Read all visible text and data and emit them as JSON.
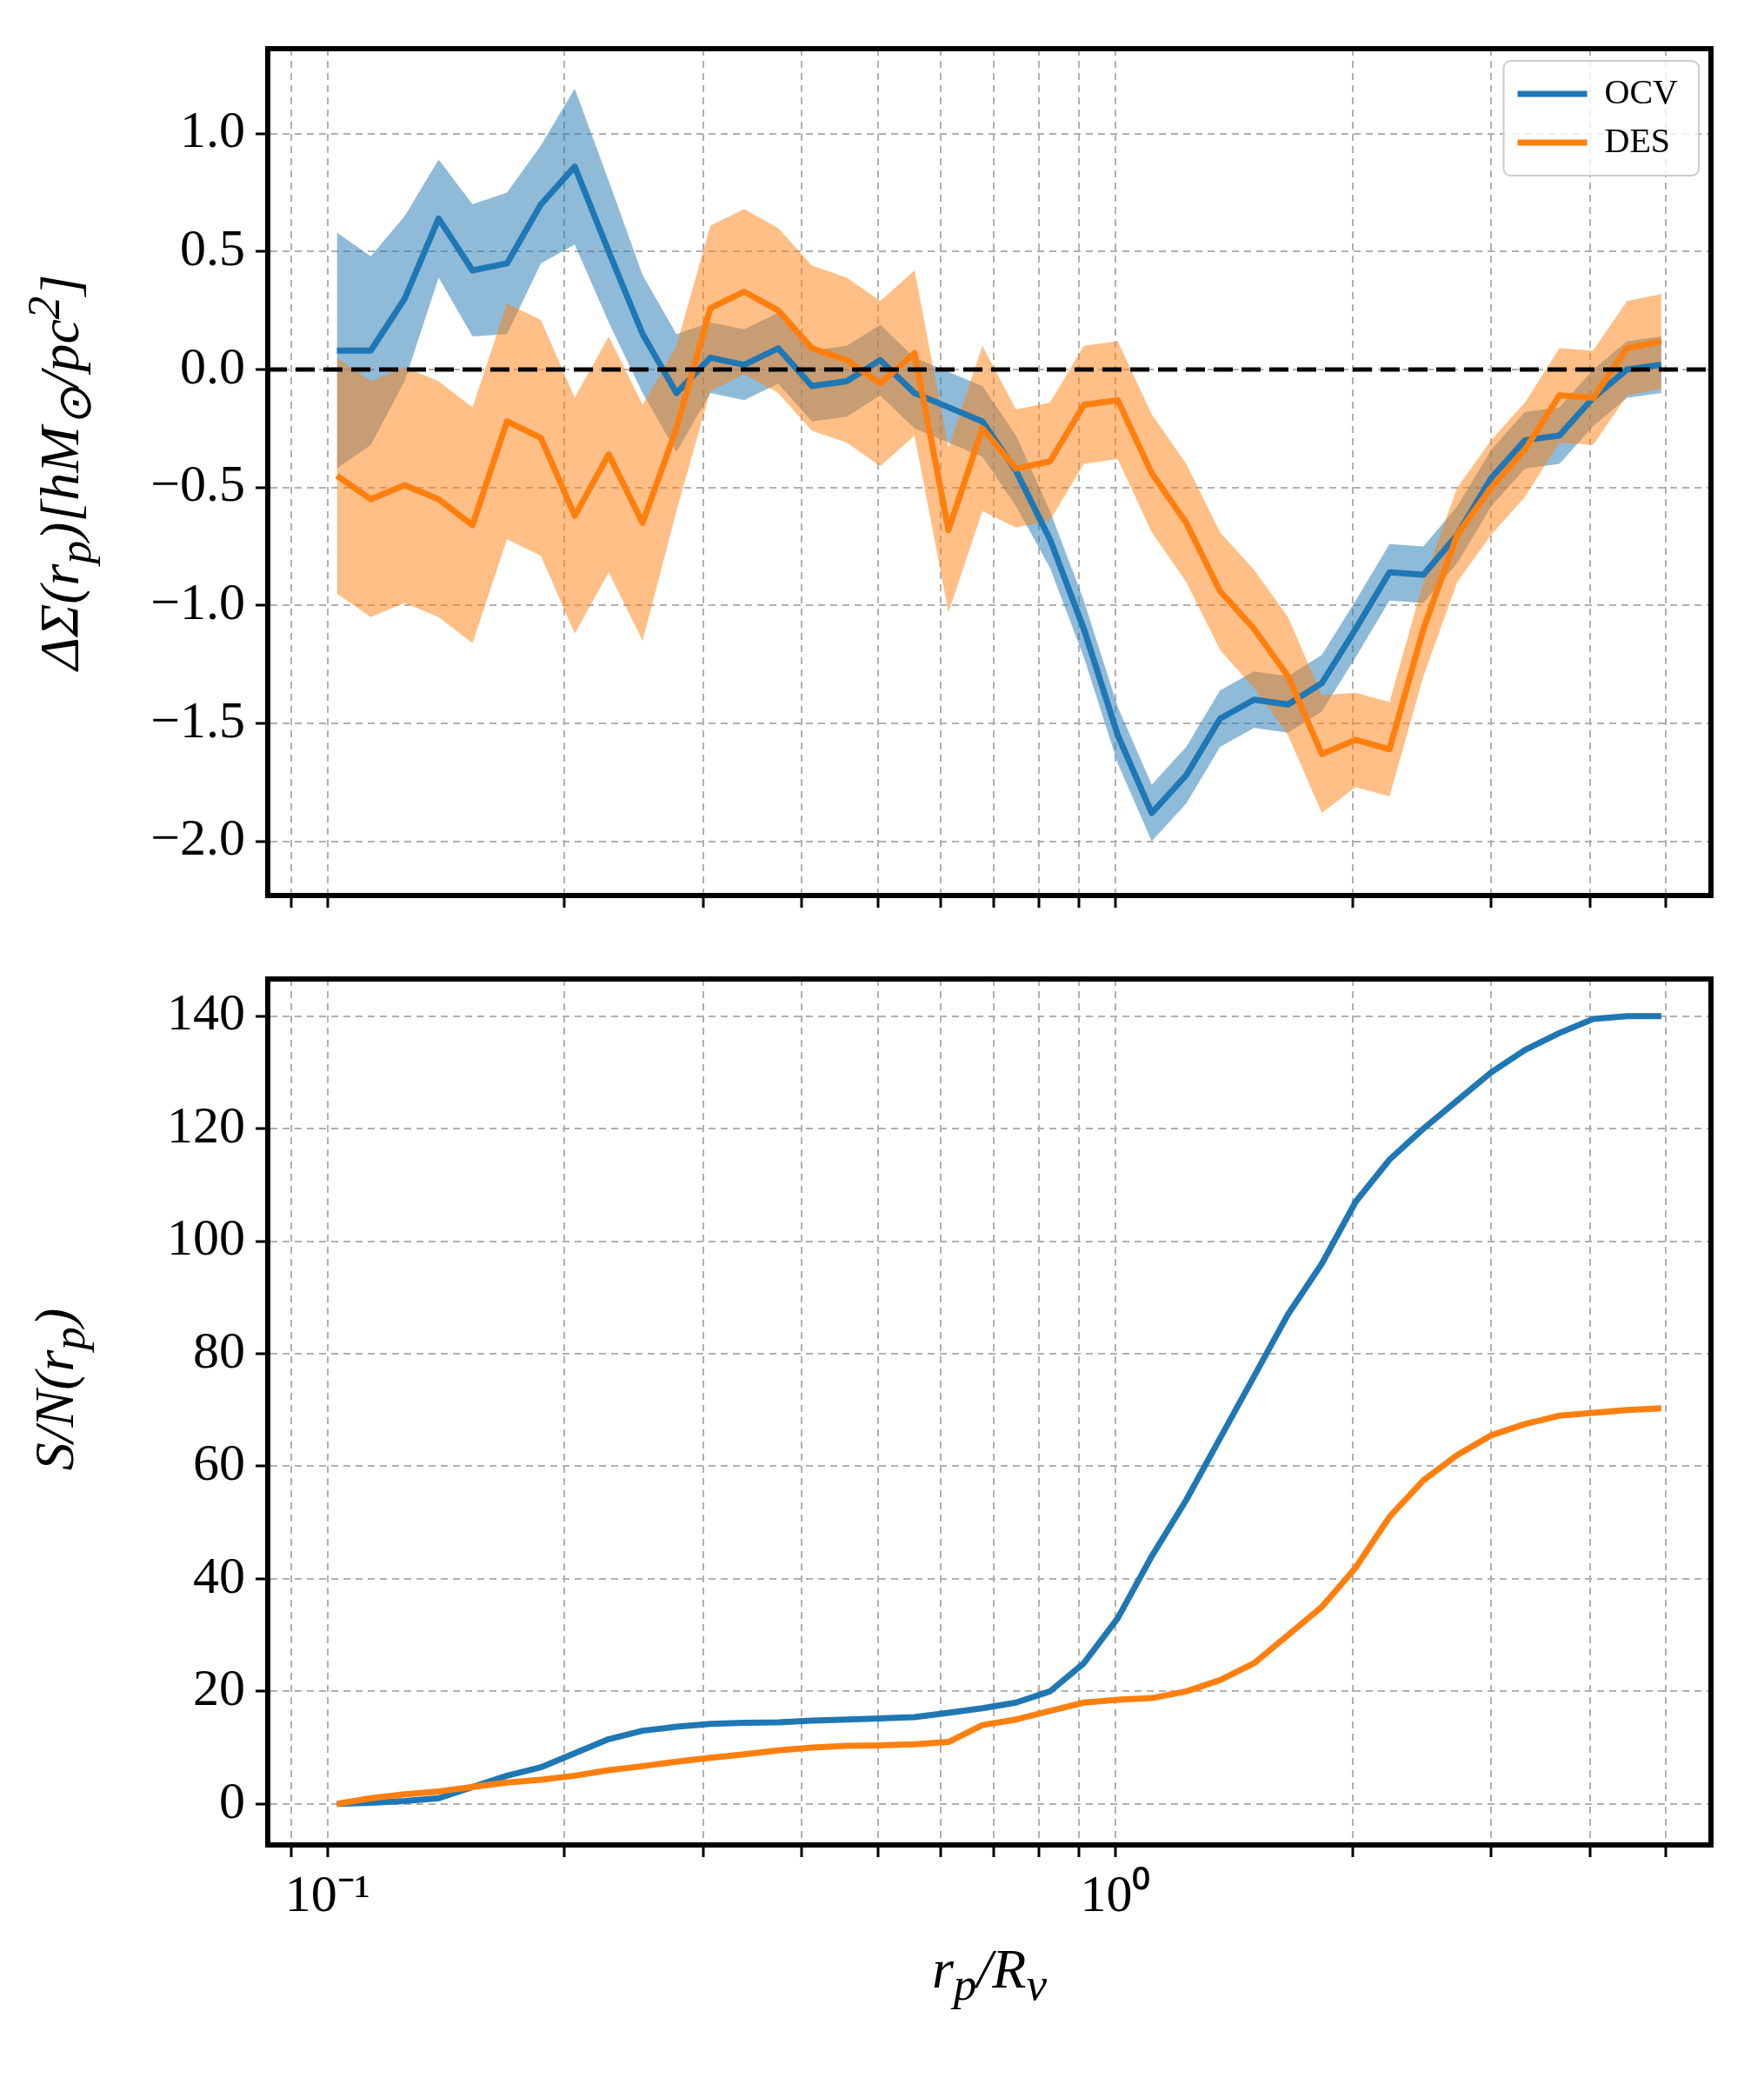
{
  "chart_data": [
    {
      "type": "line",
      "ylabel": "ΔΣ(r$_{p}$)[hM$_{⊙}$/pc$^{2}$]",
      "log": "x",
      "grid": true,
      "legend": "top right",
      "tick_labels": "y",
      "x": [
        0.1028,
        0.1135,
        0.1253,
        0.1384,
        0.1528,
        0.169,
        0.1866,
        0.206,
        0.2275,
        0.2512,
        0.2773,
        0.3062,
        0.338,
        0.3733,
        0.412,
        0.456,
        0.503,
        0.556,
        0.614,
        0.678,
        0.748,
        0.826,
        0.912,
        1.007,
        1.112,
        1.23,
        1.358,
        1.5,
        1.656,
        1.828,
        2.018,
        2.228,
        2.46,
        2.716,
        2.999,
        3.31,
        3.66,
        4.04,
        4.46,
        4.93
      ],
      "xlim": [
        0.084,
        5.7
      ],
      "xticks": [
        {
          "value": 0.09,
          "label": null
        },
        {
          "value": 0.1,
          "label": null
        },
        {
          "value": 0.2,
          "label": null
        },
        {
          "value": 0.3,
          "label": null
        },
        {
          "value": 0.4,
          "label": null
        },
        {
          "value": 0.5,
          "label": null
        },
        {
          "value": 0.6,
          "label": null
        },
        {
          "value": 0.7,
          "label": null
        },
        {
          "value": 0.8,
          "label": null
        },
        {
          "value": 0.9,
          "label": null
        },
        {
          "value": 1,
          "label": null
        },
        {
          "value": 2,
          "label": null
        },
        {
          "value": 3,
          "label": null
        },
        {
          "value": 4,
          "label": null
        },
        {
          "value": 5,
          "label": null
        }
      ],
      "ylim": [
        -2.23,
        1.36
      ],
      "yticks": [
        {
          "value": -2,
          "label": "−2.0"
        },
        {
          "value": -1.5,
          "label": "−1.5"
        },
        {
          "value": -1,
          "label": "−1.0"
        },
        {
          "value": -0.5,
          "label": "−0.5"
        },
        {
          "value": 0,
          "label": "0.0"
        },
        {
          "value": 0.5,
          "label": "0.5"
        },
        {
          "value": 1,
          "label": "1.0"
        }
      ],
      "ref_lines": [
        {
          "axis": "y",
          "value": 0,
          "label": null,
          "color": "#000000",
          "line_style": "dashed"
        }
      ],
      "series": [
        {
          "name": "OCV",
          "color": "#1f77b4",
          "values": [
            0.08,
            0.08,
            0.3,
            0.64,
            0.42,
            0.45,
            0.7,
            0.86,
            0.5,
            0.15,
            -0.1,
            0.05,
            0.02,
            0.09,
            -0.07,
            -0.05,
            0.04,
            -0.1,
            -0.16,
            -0.22,
            -0.43,
            -0.72,
            -1.1,
            -1.55,
            -1.88,
            -1.72,
            -1.48,
            -1.4,
            -1.42,
            -1.33,
            -1.1,
            -0.86,
            -0.87,
            -0.7,
            -0.46,
            -0.3,
            -0.28,
            -0.12,
            0,
            0.02
          ],
          "lower": [
            -0.42,
            -0.32,
            -0.05,
            0.39,
            0.14,
            0.15,
            0.45,
            0.53,
            0.2,
            -0.1,
            -0.35,
            -0.1,
            -0.13,
            -0.06,
            -0.22,
            -0.2,
            -0.11,
            -0.25,
            -0.31,
            -0.37,
            -0.58,
            -0.84,
            -1.22,
            -1.67,
            -2.0,
            -1.84,
            -1.6,
            -1.52,
            -1.54,
            -1.45,
            -1.22,
            -0.98,
            -0.99,
            -0.82,
            -0.58,
            -0.42,
            -0.4,
            -0.24,
            -0.12,
            -0.1
          ],
          "upper": [
            0.58,
            0.48,
            0.65,
            0.89,
            0.7,
            0.75,
            0.95,
            1.19,
            0.8,
            0.4,
            0.15,
            0.2,
            0.17,
            0.24,
            0.08,
            0.1,
            0.19,
            0.05,
            -0.01,
            -0.07,
            -0.28,
            -0.6,
            -0.98,
            -1.43,
            -1.76,
            -1.6,
            -1.36,
            -1.28,
            -1.3,
            -1.21,
            -0.98,
            -0.74,
            -0.75,
            -0.58,
            -0.34,
            -0.18,
            -0.16,
            0,
            0.12,
            0.14
          ]
        },
        {
          "name": "DES",
          "color": "#ff7f0e",
          "values": [
            -0.45,
            -0.55,
            -0.49,
            -0.55,
            -0.66,
            -0.22,
            -0.29,
            -0.62,
            -0.36,
            -0.65,
            -0.25,
            0.26,
            0.33,
            0.25,
            0.09,
            0.04,
            -0.06,
            0.07,
            -0.68,
            -0.25,
            -0.42,
            -0.39,
            -0.15,
            -0.13,
            -0.44,
            -0.65,
            -0.94,
            -1.1,
            -1.3,
            -1.63,
            -1.57,
            -1.61,
            -1.1,
            -0.7,
            -0.5,
            -0.34,
            -0.11,
            -0.12,
            0.09,
            0.12
          ],
          "lower": [
            -0.95,
            -1.05,
            -0.99,
            -1.05,
            -1.16,
            -0.72,
            -0.79,
            -1.12,
            -0.86,
            -1.15,
            -0.6,
            -0.09,
            -0.02,
            -0.1,
            -0.26,
            -0.31,
            -0.41,
            -0.28,
            -1.03,
            -0.6,
            -0.67,
            -0.64,
            -0.4,
            -0.38,
            -0.69,
            -0.9,
            -1.19,
            -1.35,
            -1.55,
            -1.88,
            -1.77,
            -1.81,
            -1.3,
            -0.9,
            -0.7,
            -0.54,
            -0.31,
            -0.32,
            -0.11,
            -0.08
          ],
          "upper": [
            0.05,
            -0.05,
            0.01,
            -0.05,
            -0.16,
            0.28,
            0.21,
            -0.12,
            0.14,
            -0.15,
            0.1,
            0.61,
            0.68,
            0.6,
            0.44,
            0.39,
            0.29,
            0.42,
            -0.33,
            0.1,
            -0.17,
            -0.14,
            0.1,
            0.12,
            -0.19,
            -0.4,
            -0.69,
            -0.85,
            -1.05,
            -1.38,
            -1.37,
            -1.41,
            -0.9,
            -0.5,
            -0.3,
            -0.14,
            0.09,
            0.08,
            0.29,
            0.32
          ]
        }
      ]
    },
    {
      "type": "line",
      "xlabel": "r$_{p}$/R$_{v}$",
      "ylabel": "S/N(r$_{p}$)",
      "log": "x",
      "grid": true,
      "x": [
        0.1028,
        0.1135,
        0.1253,
        0.1384,
        0.1528,
        0.169,
        0.1866,
        0.206,
        0.2275,
        0.2512,
        0.2773,
        0.3062,
        0.338,
        0.3733,
        0.412,
        0.456,
        0.503,
        0.556,
        0.614,
        0.678,
        0.748,
        0.826,
        0.912,
        1.007,
        1.112,
        1.23,
        1.358,
        1.5,
        1.656,
        1.828,
        2.018,
        2.228,
        2.46,
        2.716,
        2.999,
        3.31,
        3.66,
        4.04,
        4.46,
        4.93
      ],
      "xlim": [
        0.084,
        5.7
      ],
      "xticks": [
        {
          "value": 0.09,
          "label": null
        },
        {
          "value": 0.1,
          "label": "10⁻¹"
        },
        {
          "value": 0.2,
          "label": null
        },
        {
          "value": 0.3,
          "label": null
        },
        {
          "value": 0.4,
          "label": null
        },
        {
          "value": 0.5,
          "label": null
        },
        {
          "value": 0.6,
          "label": null
        },
        {
          "value": 0.7,
          "label": null
        },
        {
          "value": 0.8,
          "label": null
        },
        {
          "value": 0.9,
          "label": null
        },
        {
          "value": 1,
          "label": "10⁰"
        },
        {
          "value": 2,
          "label": null
        },
        {
          "value": 3,
          "label": null
        },
        {
          "value": 4,
          "label": null
        },
        {
          "value": 5,
          "label": null
        }
      ],
      "ylim": [
        -7.3,
        146.6
      ],
      "yticks": [
        0,
        20,
        40,
        60,
        80,
        100,
        120,
        140
      ],
      "series": [
        {
          "color": "#1f77b4",
          "values": [
            0,
            0.2,
            0.5,
            1,
            3,
            5,
            6.5,
            9,
            11.5,
            13,
            13.7,
            14.2,
            14.4,
            14.5,
            14.8,
            15,
            15.2,
            15.4,
            16.2,
            17,
            18,
            20,
            25,
            33,
            44,
            54,
            65,
            76,
            87,
            96,
            107,
            114.5,
            120,
            125,
            130,
            134,
            137,
            139.5,
            140,
            140
          ]
        },
        {
          "color": "#ff7f0e",
          "values": [
            0,
            1,
            1.7,
            2.2,
            3,
            3.8,
            4.3,
            5,
            6,
            6.7,
            7.5,
            8.2,
            8.8,
            9.5,
            10,
            10.3,
            10.4,
            10.6,
            11,
            14,
            15,
            16.5,
            18,
            18.5,
            18.8,
            20,
            22,
            25,
            30,
            35,
            42,
            51,
            57.5,
            62,
            65.5,
            67.5,
            69,
            69.5,
            70,
            70.3
          ]
        }
      ]
    }
  ]
}
